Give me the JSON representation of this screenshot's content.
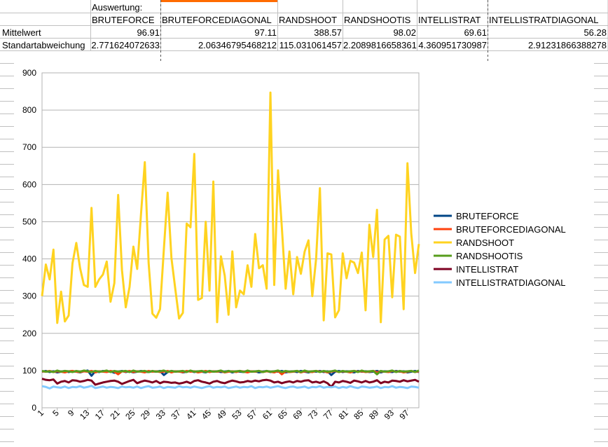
{
  "table": {
    "title": "Auswertung:",
    "headers": [
      "BRUTEFORCE",
      "BRUTEFORCEDIAGONAL",
      "RANDSHOOT",
      "RANDSHOOTIS",
      "INTELLISTRAT",
      "INTELLISTRATDIAGONAL"
    ],
    "rows": [
      {
        "label": "Mittelwert",
        "values": [
          "96.91",
          "97.11",
          "388.57",
          "98.02",
          "69.61",
          "56.28"
        ]
      },
      {
        "label": "Standartabweichung",
        "values": [
          "2.771624072633",
          "2.06346795468212",
          "115.031061457",
          "2.2089816658361",
          "4.360951730987",
          "2.91231866388278"
        ]
      }
    ]
  },
  "chart_data": {
    "type": "line",
    "ylim": [
      0,
      900
    ],
    "yticks": [
      "0",
      "100",
      "200",
      "300",
      "400",
      "500",
      "600",
      "700",
      "800",
      "900"
    ],
    "xticks": [
      "1",
      "5",
      "9",
      "13",
      "17",
      "21",
      "25",
      "29",
      "33",
      "37",
      "41",
      "45",
      "49",
      "53",
      "57",
      "61",
      "65",
      "69",
      "73",
      "77",
      "81",
      "85",
      "89",
      "93",
      "97"
    ],
    "x_count": 100,
    "legend_position": "right",
    "series": [
      {
        "name": "BRUTEFORCE",
        "color": "#004586",
        "values": [
          97,
          99,
          96,
          98,
          95,
          97,
          99,
          96,
          98,
          97,
          95,
          98,
          100,
          86,
          98,
          96,
          99,
          97,
          98,
          94,
          97,
          99,
          96,
          98,
          95,
          97,
          99,
          97,
          96,
          98,
          97,
          99,
          88,
          96,
          99,
          97,
          98,
          95,
          97,
          99,
          96,
          98,
          97,
          95,
          99,
          97,
          98,
          96,
          97,
          99,
          95,
          98,
          97,
          96,
          99,
          97,
          98,
          95,
          97,
          99,
          96,
          98,
          97,
          99,
          95,
          97,
          98,
          96,
          99,
          97,
          95,
          98,
          97,
          99,
          96,
          98,
          88,
          97,
          99,
          96,
          98,
          97,
          95,
          99,
          97,
          98,
          96,
          97,
          99,
          95,
          98,
          97,
          96,
          99,
          97,
          98,
          95,
          97,
          99,
          96
        ]
      },
      {
        "name": "BRUTEFORCEDIAGONAL",
        "color": "#ff420e",
        "values": [
          98,
          97,
          99,
          96,
          98,
          97,
          95,
          98,
          99,
          97,
          96,
          98,
          97,
          99,
          95,
          98,
          97,
          96,
          99,
          97,
          90,
          98,
          97,
          99,
          96,
          98,
          97,
          95,
          99,
          97,
          98,
          96,
          97,
          99,
          95,
          98,
          97,
          96,
          99,
          97,
          98,
          95,
          97,
          99,
          96,
          98,
          97,
          99,
          95,
          97,
          98,
          96,
          99,
          97,
          95,
          98,
          97,
          99,
          96,
          98,
          97,
          95,
          99,
          90,
          98,
          96,
          97,
          99,
          95,
          98,
          97,
          96,
          99,
          97,
          98,
          95,
          97,
          99,
          96,
          98,
          97,
          95,
          99,
          97,
          98,
          96,
          97,
          99,
          95,
          98,
          97,
          96,
          99,
          97,
          98,
          95,
          97,
          99,
          96,
          98
        ]
      },
      {
        "name": "RANDSHOOT",
        "color": "#ffd320",
        "values": [
          300,
          385,
          345,
          425,
          228,
          312,
          232,
          248,
          388,
          443,
          375,
          330,
          325,
          537,
          325,
          345,
          358,
          393,
          285,
          335,
          572,
          370,
          270,
          325,
          433,
          373,
          520,
          660,
          390,
          253,
          242,
          265,
          425,
          578,
          402,
          320,
          240,
          255,
          495,
          485,
          682,
          290,
          295,
          500,
          315,
          608,
          230,
          407,
          355,
          250,
          420,
          270,
          315,
          305,
          383,
          325,
          467,
          375,
          383,
          320,
          847,
          330,
          638,
          485,
          320,
          420,
          305,
          405,
          360,
          420,
          450,
          300,
          400,
          590,
          235,
          415,
          412,
          243,
          262,
          415,
          348,
          395,
          390,
          362,
          417,
          262,
          492,
          405,
          532,
          230,
          452,
          462,
          297,
          465,
          460,
          265,
          657,
          468,
          362,
          440
        ]
      },
      {
        "name": "RANDSHOOTIS",
        "color": "#579d1c",
        "values": [
          99,
          97,
          98,
          96,
          100,
          97,
          99,
          98,
          96,
          99,
          97,
          100,
          98,
          96,
          99,
          97,
          98,
          100,
          96,
          99,
          97,
          98,
          99,
          96,
          100,
          97,
          98,
          99,
          96,
          99,
          97,
          98,
          100,
          96,
          99,
          97,
          98,
          99,
          96,
          100,
          97,
          98,
          99,
          96,
          99,
          97,
          98,
          100,
          96,
          99,
          97,
          98,
          99,
          96,
          100,
          97,
          98,
          99,
          96,
          99,
          97,
          98,
          100,
          96,
          99,
          97,
          98,
          99,
          96,
          100,
          97,
          98,
          99,
          96,
          99,
          97,
          98,
          100,
          96,
          99,
          97,
          98,
          99,
          96,
          100,
          97,
          98,
          99,
          90,
          99,
          97,
          98,
          100,
          96,
          99,
          97,
          98,
          99,
          96,
          100
        ]
      },
      {
        "name": "INTELLISTRAT",
        "color": "#7e0021",
        "values": [
          78,
          75,
          74,
          76,
          65,
          70,
          72,
          68,
          74,
          73,
          70,
          72,
          75,
          73,
          62,
          65,
          68,
          70,
          72,
          73,
          70,
          64,
          68,
          72,
          75,
          66,
          70,
          73,
          71,
          68,
          72,
          66,
          70,
          69,
          67,
          68,
          65,
          67,
          70,
          66,
          72,
          74,
          70,
          68,
          65,
          70,
          72,
          68,
          66,
          70,
          73,
          71,
          68,
          69,
          72,
          70,
          73,
          71,
          74,
          75,
          73,
          68,
          70,
          66,
          69,
          71,
          68,
          72,
          70,
          73,
          74,
          68,
          70,
          67,
          71,
          66,
          56,
          70,
          68,
          72,
          70,
          67,
          73,
          71,
          68,
          72,
          68,
          70,
          74,
          66,
          70,
          68,
          73,
          72,
          70,
          74,
          71,
          73,
          75,
          70
        ]
      },
      {
        "name": "INTELLISTRATDIAGONAL",
        "color": "#83caff",
        "values": [
          58,
          56,
          52,
          57,
          55,
          54,
          57,
          53,
          56,
          55,
          58,
          54,
          56,
          59,
          53,
          55,
          57,
          54,
          56,
          55,
          53,
          57,
          55,
          56,
          54,
          57,
          53,
          56,
          58,
          54,
          55,
          57,
          53,
          56,
          55,
          54,
          58,
          55,
          56,
          54,
          57,
          55,
          53,
          56,
          58,
          54,
          56,
          55,
          57,
          53,
          55,
          57,
          54,
          56,
          55,
          58,
          53,
          56,
          55,
          57,
          54,
          56,
          58,
          55,
          53,
          56,
          57,
          54,
          55,
          57,
          53,
          56,
          55,
          58,
          54,
          56,
          55,
          57,
          53,
          56,
          54,
          58,
          55,
          53,
          57,
          56,
          54,
          55,
          57,
          53,
          56,
          55,
          58,
          54,
          56,
          55,
          53,
          57,
          56,
          54
        ]
      }
    ]
  }
}
